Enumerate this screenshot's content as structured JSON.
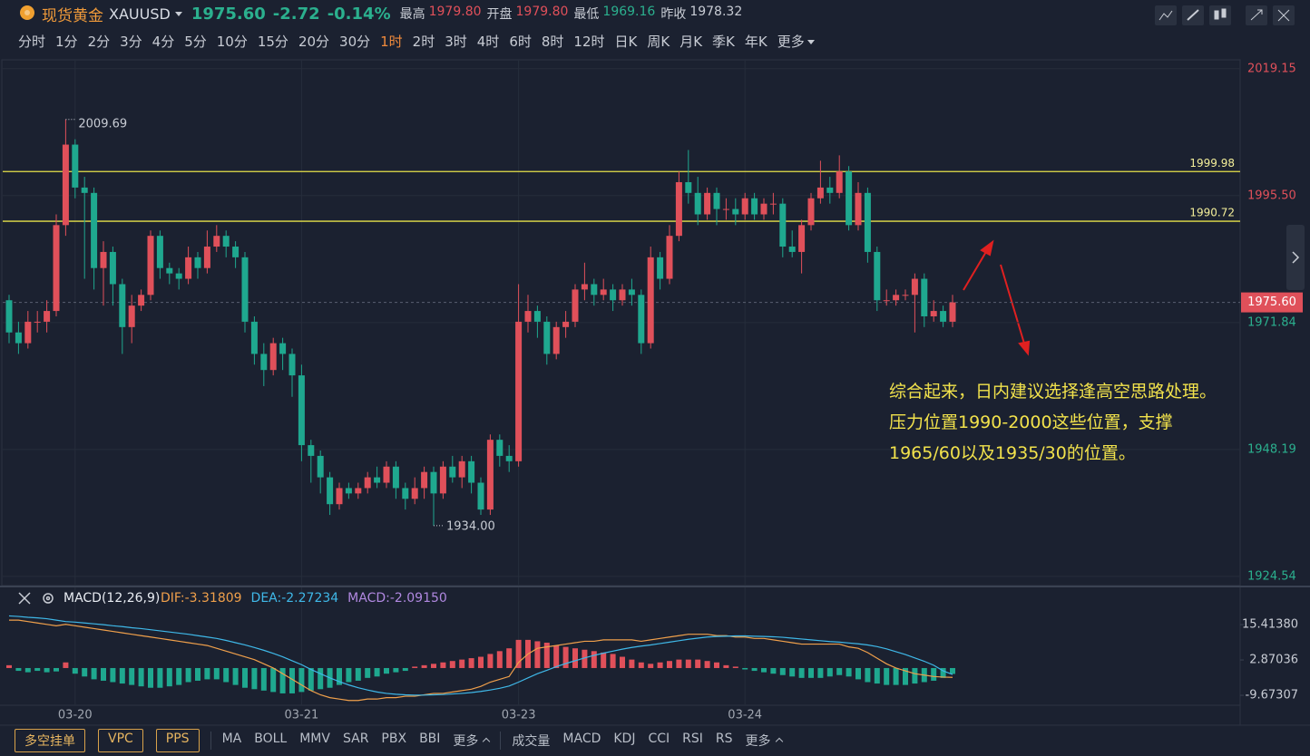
{
  "header": {
    "symbol": "现货黄金",
    "code": "XAUUSD",
    "price": "1975.60",
    "change": "-2.72",
    "change_pct": "-0.14%",
    "stats": [
      {
        "label": "最高",
        "value": "1979.80",
        "color": "#e0505a"
      },
      {
        "label": "开盘",
        "value": "1979.80",
        "color": "#e0505a"
      },
      {
        "label": "最低",
        "value": "1969.16",
        "color": "#2bb08e"
      },
      {
        "label": "昨收",
        "value": "1978.32",
        "color": "#c8ccd4"
      }
    ]
  },
  "timeframes": [
    {
      "label": "分时"
    },
    {
      "label": "1分"
    },
    {
      "label": "2分"
    },
    {
      "label": "3分"
    },
    {
      "label": "4分"
    },
    {
      "label": "5分"
    },
    {
      "label": "10分"
    },
    {
      "label": "15分"
    },
    {
      "label": "20分"
    },
    {
      "label": "30分"
    },
    {
      "label": "1时",
      "active": true
    },
    {
      "label": "2时"
    },
    {
      "label": "3时"
    },
    {
      "label": "4时"
    },
    {
      "label": "6时"
    },
    {
      "label": "8时"
    },
    {
      "label": "12时"
    },
    {
      "label": "日K"
    },
    {
      "label": "周K"
    },
    {
      "label": "月K"
    },
    {
      "label": "季K"
    },
    {
      "label": "年K"
    },
    {
      "label": "更多",
      "more": true
    }
  ],
  "chart_data": [
    {
      "type": "candlestick",
      "up_color": "#e0505a",
      "down_color": "#1fa88f",
      "categories": [
        null,
        null,
        null,
        null,
        null,
        null,
        null,
        "03-20",
        null,
        null,
        null,
        null,
        null,
        null,
        null,
        null,
        null,
        null,
        null,
        null,
        null,
        null,
        null,
        null,
        null,
        null,
        null,
        null,
        null,
        null,
        null,
        "03-21",
        null,
        null,
        null,
        null,
        null,
        null,
        null,
        null,
        null,
        null,
        null,
        null,
        null,
        null,
        null,
        null,
        null,
        null,
        null,
        null,
        null,
        null,
        "03-23",
        null,
        null,
        null,
        null,
        null,
        null,
        null,
        null,
        null,
        null,
        null,
        null,
        null,
        null,
        null,
        null,
        null,
        null,
        null,
        null,
        null,
        null,
        null,
        "03-24",
        null,
        null,
        null,
        null,
        null,
        null,
        null,
        null,
        null,
        null,
        null,
        null,
        null,
        null,
        null,
        null,
        null,
        null,
        null,
        null,
        null,
        null
      ],
      "open": [
        1976,
        1970,
        1968,
        1972,
        1972,
        1974,
        1990,
        2005,
        1997,
        1996,
        1982,
        1985,
        1979,
        1971,
        1975,
        1977,
        1988,
        1982,
        1981,
        1980,
        1984,
        1982,
        1986,
        1988,
        1986,
        1984,
        1972,
        1966,
        1963,
        1968,
        1966,
        1962,
        1949,
        1947,
        1943,
        1938,
        1941,
        1940,
        1941,
        1943,
        1942,
        1945,
        1941,
        1939,
        1941,
        1944,
        1940,
        1945,
        1943,
        1946,
        1942,
        1937,
        1950,
        1947,
        1946,
        1972,
        1974,
        1972,
        1966,
        1971,
        1972,
        1978,
        1979,
        1977,
        1978,
        1976,
        1978,
        1977,
        1968,
        1984,
        1980,
        1988,
        1998,
        1996,
        1992,
        1996,
        1993,
        1993,
        1992,
        1995,
        1992,
        1994,
        1994,
        1986,
        1985,
        1990,
        1995,
        1997,
        1996,
        2000,
        1990,
        1996,
        1985,
        1976,
        1976,
        1977,
        1977,
        1980,
        1973,
        1974,
        1972
      ],
      "high": [
        1977,
        1972,
        1974,
        1974,
        1976,
        1992,
        2009.69,
        2006,
        1999,
        1997,
        1987,
        1986,
        1980,
        1977,
        1978,
        1989,
        1989,
        1983,
        1982,
        1986,
        1985,
        1989,
        1990,
        1989,
        1987,
        1985,
        1973,
        1968,
        1969,
        1969,
        1967,
        1964,
        1950,
        1948,
        1944,
        1942,
        1942,
        1942,
        1944,
        1945,
        1946,
        1946,
        1942,
        1943,
        1945,
        1945,
        1946,
        1947,
        1947,
        1947,
        1943,
        1951,
        1951,
        1949,
        1979,
        1977,
        1975,
        1973,
        1972,
        1974,
        1979,
        1983,
        1980,
        1980,
        1979,
        1979,
        1980,
        1978,
        1986,
        1985,
        1990,
        2000,
        2004,
        1999,
        1997,
        1997,
        1995,
        1995,
        1996,
        1996,
        1995,
        1996,
        1995,
        1989,
        1991,
        1996,
        2002,
        1999,
        2003,
        2001,
        1998,
        1997,
        1986,
        1978,
        1978,
        1978,
        1981,
        1981,
        1976,
        1975,
        1977
      ],
      "low": [
        1968,
        1966,
        1967,
        1970,
        1970,
        1973,
        1988,
        1995,
        1980,
        1978,
        1975,
        1975,
        1966,
        1968,
        1974,
        1976,
        1980,
        1979,
        1978,
        1979,
        1980,
        1981,
        1985,
        1984,
        1982,
        1970,
        1964,
        1960,
        1962,
        1963,
        1958,
        1946,
        1942,
        1940,
        1936,
        1937,
        1939,
        1939,
        1940,
        1941,
        1941,
        1939,
        1937,
        1938,
        1939,
        1934,
        1939,
        1942,
        1941,
        1940,
        1936,
        1936,
        1945,
        1944,
        1945,
        1970,
        1969,
        1964,
        1965,
        1969,
        1971,
        1976,
        1975,
        1976,
        1974,
        1975,
        1975,
        1966,
        1967,
        1978,
        1979,
        1987,
        1994,
        1990,
        1991,
        1990,
        1991,
        1990,
        1991,
        1991,
        1991,
        1992,
        1984,
        1984,
        1981,
        1989,
        1994,
        1994,
        1995,
        1989,
        1989,
        1983,
        1974,
        1975,
        1975,
        1976,
        1970,
        1971,
        1972,
        1971,
        1971
      ],
      "close": [
        1970,
        1968,
        1972,
        1972,
        1974,
        1990,
        2005,
        1997,
        1996,
        1982,
        1985,
        1979,
        1971,
        1975,
        1977,
        1988,
        1982,
        1981,
        1980,
        1984,
        1982,
        1986,
        1988,
        1986,
        1984,
        1972,
        1966,
        1963,
        1968,
        1966,
        1962,
        1949,
        1947,
        1943,
        1938,
        1941,
        1940,
        1941,
        1943,
        1942,
        1945,
        1941,
        1939,
        1941,
        1944,
        1940,
        1945,
        1943,
        1946,
        1942,
        1937,
        1950,
        1947,
        1946,
        1972,
        1974,
        1972,
        1966,
        1971,
        1972,
        1978,
        1979,
        1977,
        1978,
        1976,
        1978,
        1977,
        1968,
        1984,
        1980,
        1988,
        1998,
        1996,
        1992,
        1996,
        1993,
        1993,
        1992,
        1995,
        1992,
        1994,
        1994,
        1986,
        1985,
        1990,
        1995,
        1997,
        1996,
        2000,
        1990,
        1996,
        1985,
        1976,
        1976,
        1977,
        1977,
        1980,
        1973,
        1974,
        1972,
        1975.6
      ],
      "ylim": [
        1923.0,
        2020.8
      ],
      "yticks": [
        2019.15,
        {
          "value": 1995.5,
          "label": "1995.50"
        },
        1971.84,
        1948.19,
        1924.54
      ],
      "grid": true,
      "lines": [
        {
          "value": 1999.98,
          "color": "#e8e34a"
        },
        {
          "value": 1990.72,
          "color": "#e8e34a"
        }
      ],
      "high_label": "2009.69",
      "low_label": "1934.00",
      "last_label": "1975.60",
      "annotation": "综合起来，日内建议选择逢高空思路处理。压力位置1990-2000这些位置，支撑1965/60以及1935/30的位置。"
    },
    {
      "type": "macd",
      "title": "MACD(12,26,9)",
      "series": [
        {
          "label": "DIF:-3.31809",
          "color": "#f0a04b",
          "values": [
            17,
            17,
            16.5,
            16,
            15.5,
            15,
            15.5,
            15,
            14.5,
            14,
            13.5,
            13,
            12.5,
            12,
            11.5,
            11,
            10.5,
            10,
            9.5,
            9,
            8.5,
            8,
            7,
            6,
            5,
            4,
            3,
            1.5,
            0,
            -2,
            -4,
            -6,
            -8,
            -9.5,
            -10.5,
            -11,
            -11.5,
            -11.5,
            -11,
            -11,
            -10.5,
            -10.5,
            -10,
            -10,
            -9.5,
            -9,
            -9,
            -8.5,
            -8,
            -7.5,
            -6.5,
            -5,
            -4,
            -3,
            2,
            5,
            7,
            7.5,
            8,
            8.5,
            9,
            9.5,
            9.5,
            10,
            10,
            10,
            10,
            9.5,
            10,
            10.5,
            11,
            11.5,
            12,
            12,
            12,
            11.5,
            11.5,
            11,
            11,
            10.5,
            10.5,
            10,
            9.5,
            9,
            8.5,
            8.5,
            8.5,
            8.5,
            8.5,
            7.5,
            7,
            5.5,
            3.5,
            1.5,
            0,
            -1,
            -2,
            -2.5,
            -3,
            -3.2,
            -3.31809
          ]
        },
        {
          "label": "DEA:-2.27234",
          "color": "#3fb8e8",
          "values": [
            18.5,
            18.3,
            18,
            17.8,
            17.5,
            17,
            16.5,
            16.3,
            16,
            15.7,
            15.4,
            15,
            14.7,
            14.3,
            14,
            13.6,
            13.2,
            12.8,
            12.4,
            12,
            11.5,
            11,
            10.5,
            9.8,
            9,
            8.2,
            7.3,
            6.3,
            5.2,
            4,
            2.6,
            1.2,
            -0.5,
            -2,
            -3.5,
            -4.8,
            -6,
            -7,
            -7.8,
            -8.5,
            -9,
            -9.3,
            -9.5,
            -9.6,
            -9.6,
            -9.5,
            -9.4,
            -9.2,
            -9,
            -8.7,
            -8.3,
            -7.8,
            -7.2,
            -6.4,
            -5,
            -3.5,
            -2,
            -0.8,
            0.5,
            1.6,
            2.6,
            3.6,
            4.5,
            5.3,
            6,
            6.7,
            7.3,
            7.8,
            8.2,
            8.7,
            9.2,
            9.7,
            10.2,
            10.6,
            11,
            11.2,
            11.3,
            11.4,
            11.4,
            11.3,
            11.2,
            11.1,
            10.9,
            10.6,
            10.3,
            10,
            9.7,
            9.4,
            9.2,
            8.9,
            8.6,
            8.2,
            7.6,
            6.8,
            5.8,
            4.8,
            3.6,
            2.4,
            1,
            -1,
            -2.27234
          ]
        }
      ],
      "histogram": {
        "label": "MACD:-2.09150",
        "color": "#b088e0",
        "up_color": "#e0505a",
        "down_color": "#1fa88f",
        "values": [
          1,
          -1,
          -1.5,
          -1,
          -1.5,
          -1.2,
          2,
          -2,
          -3,
          -4,
          -4.5,
          -5,
          -5.5,
          -6,
          -6.5,
          -7,
          -7,
          -6.5,
          -6,
          -5,
          -4.5,
          -4,
          -4,
          -5,
          -6,
          -7,
          -7.5,
          -8,
          -8.5,
          -9,
          -9,
          -8.5,
          -8,
          -7.5,
          -7,
          -6,
          -5,
          -4.5,
          -3.5,
          -3,
          -2,
          -1.5,
          -1,
          0.5,
          1,
          1.5,
          2,
          2.5,
          3,
          3.5,
          4,
          5,
          6,
          7,
          10,
          10,
          9.5,
          9,
          8,
          7.5,
          7,
          6.5,
          6,
          5.5,
          5,
          4,
          3,
          2,
          1.5,
          2,
          2.5,
          3,
          3,
          3,
          2.5,
          2,
          1,
          0.5,
          -0.5,
          -1,
          -1.5,
          -2,
          -2.5,
          -3,
          -3.5,
          -3.5,
          -3.5,
          -3,
          -2.5,
          -3,
          -4,
          -5,
          -5.5,
          -6,
          -6,
          -6,
          -5.5,
          -5,
          -4.5,
          -3.5,
          -2.0915
        ]
      },
      "ylim": [
        -13.2,
        20.9
      ],
      "yticks": [
        {
          "value": 15.4138,
          "label": "15.41380"
        },
        2.87036,
        -9.67307
      ]
    }
  ],
  "toolbar": {
    "buttons": [
      "多空挂单",
      "VPC",
      "PPS"
    ],
    "main": [
      "MA",
      "BOLL",
      "MMV",
      "SAR",
      "PBX",
      "BBI",
      "更多"
    ],
    "sub": [
      "成交量",
      "MACD",
      "KDJ",
      "CCI",
      "RSI",
      "RS",
      "更多"
    ]
  }
}
